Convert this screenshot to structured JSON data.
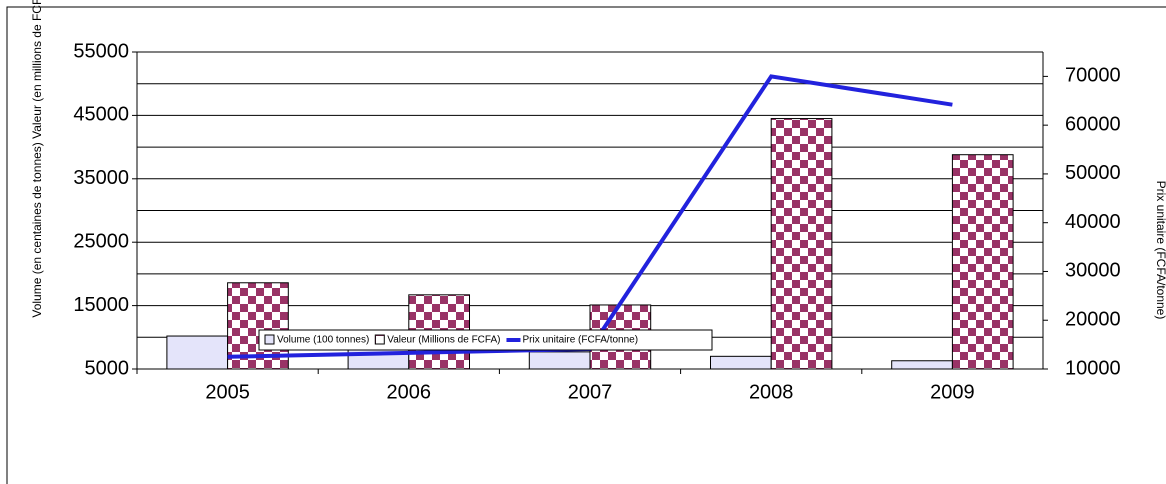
{
  "chart_data": {
    "type": "bar_line",
    "ylabel": "Volume (en centaines de tonnes)  Valeur (en millions de FCFA)",
    "y2label": "Prix unitaire (FCFA/tonne)",
    "categories": [
      "2005",
      "2006",
      "2007",
      "2008",
      "2009"
    ],
    "ylim": [
      5000,
      55000
    ],
    "yticks": [
      5000,
      15000,
      25000,
      35000,
      45000,
      55000
    ],
    "ygrid": [
      10000,
      15000,
      20000,
      25000,
      30000,
      35000,
      40000,
      45000,
      50000,
      55000
    ],
    "y2lim": [
      10000,
      75000
    ],
    "y2ticks": [
      10000,
      20000,
      30000,
      40000,
      50000,
      60000,
      70000
    ],
    "series": [
      {
        "name": "Volume (100 tonnes)",
        "kind": "bar",
        "color": "#e4e4fa",
        "values": [
          10200,
          8900,
          7700,
          7000,
          6300
        ]
      },
      {
        "name": "Valeur (Millions de FCFA)",
        "kind": "bar",
        "pattern": "checker",
        "color": "#993366",
        "values": [
          18600,
          16700,
          15100,
          44500,
          38800
        ]
      },
      {
        "name": "Prix unitaire (FCFA/tonne)",
        "kind": "line",
        "axis": "y2",
        "color": "#2222dd",
        "values": [
          12500,
          13300,
          14100,
          70000,
          64200
        ]
      }
    ],
    "legend": "bottom"
  }
}
